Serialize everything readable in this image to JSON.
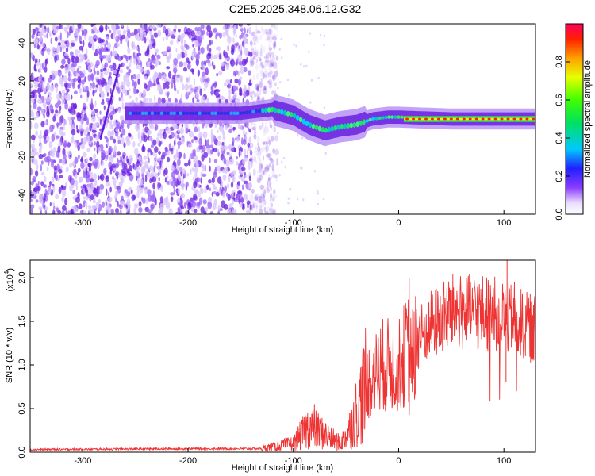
{
  "title": "C2E5.2025.348.06.12.G32",
  "chart_data": [
    {
      "type": "heatmap",
      "name": "spectrogram",
      "xlabel": "Height of straight line (km)",
      "ylabel": "Frequency (Hz)",
      "xlim": [
        -350,
        130
      ],
      "ylim": [
        -50,
        50
      ],
      "xticks": [
        -300,
        -200,
        -100,
        0,
        100
      ],
      "yticks": [
        -40,
        -20,
        0,
        20,
        40
      ],
      "colorbar": {
        "label": "Normalized spectral amplitude",
        "range": [
          0.0,
          1.0
        ],
        "ticks": [
          0.0,
          0.2,
          0.4,
          0.6,
          0.8
        ],
        "tick_labels": [
          "0.0",
          "0.2",
          "0.4",
          "0.6",
          "0.8"
        ]
      },
      "signal_track": [
        {
          "x": -260,
          "y": 3
        },
        {
          "x": -200,
          "y": 3
        },
        {
          "x": -150,
          "y": 3
        },
        {
          "x": -120,
          "y": 5
        },
        {
          "x": -100,
          "y": 2
        },
        {
          "x": -85,
          "y": -3
        },
        {
          "x": -70,
          "y": -6
        },
        {
          "x": -55,
          "y": -4
        },
        {
          "x": -40,
          "y": -3
        },
        {
          "x": -25,
          "y": 0
        },
        {
          "x": -10,
          "y": 1
        },
        {
          "x": 0,
          "y": 1
        },
        {
          "x": 50,
          "y": 0
        },
        {
          "x": 100,
          "y": 0
        },
        {
          "x": 130,
          "y": 0
        }
      ],
      "noise_extent_x": [
        -350,
        -125
      ]
    },
    {
      "type": "line",
      "name": "snr",
      "xlabel": "Height of straight line (km)",
      "ylabel": "SNR (10 * v/v)",
      "yscale_label": "(x10",
      "yscale_exp": "4",
      "xlim": [
        -350,
        130
      ],
      "ylim": [
        0,
        2.2
      ],
      "xticks": [
        -300,
        -200,
        -100,
        0,
        100
      ],
      "yticks": [
        0.0,
        0.5,
        1.0,
        1.5,
        2.0
      ],
      "ytick_labels": [
        "0.0",
        "0.5",
        "1.0",
        "1.5",
        "2.0"
      ],
      "series": [
        {
          "name": "SNR",
          "color": "#ee3333",
          "envelope": [
            {
              "x": -350,
              "y": 0.03
            },
            {
              "x": -200,
              "y": 0.04
            },
            {
              "x": -130,
              "y": 0.04
            },
            {
              "x": -100,
              "y": 0.1
            },
            {
              "x": -85,
              "y": 0.3
            },
            {
              "x": -70,
              "y": 0.2
            },
            {
              "x": -55,
              "y": 0.1
            },
            {
              "x": -45,
              "y": 0.3
            },
            {
              "x": -30,
              "y": 0.8
            },
            {
              "x": -15,
              "y": 1.0
            },
            {
              "x": 0,
              "y": 1.0
            },
            {
              "x": 10,
              "y": 1.2
            },
            {
              "x": 30,
              "y": 1.45
            },
            {
              "x": 50,
              "y": 1.6
            },
            {
              "x": 80,
              "y": 1.6
            },
            {
              "x": 100,
              "y": 1.55
            },
            {
              "x": 130,
              "y": 1.4
            }
          ],
          "spikes": [
            {
              "x": 10,
              "y": 2.0
            },
            {
              "x": 103,
              "y": 2.2
            },
            {
              "x": 110,
              "y": 1.95
            },
            {
              "x": -80,
              "y": 0.55
            },
            {
              "x": 102,
              "y": 0.8
            }
          ]
        }
      ]
    }
  ],
  "colors": {
    "noise": "#7a3cf0",
    "snr_line": "#ee3333"
  }
}
